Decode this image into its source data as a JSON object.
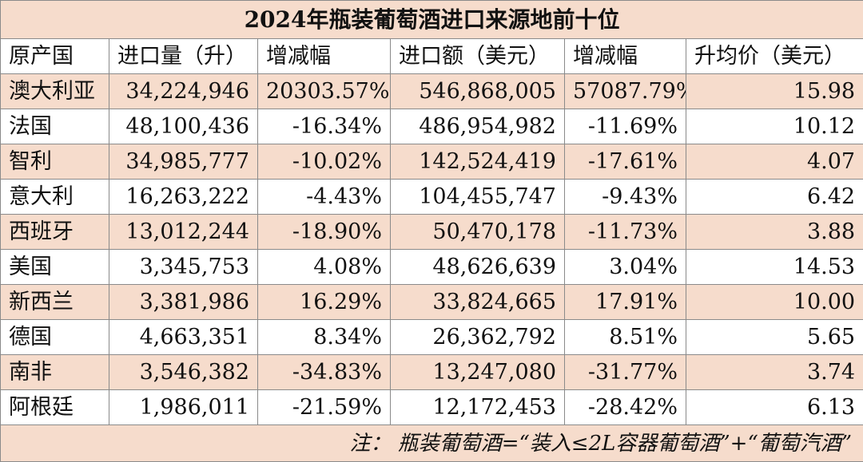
{
  "table": {
    "title": "2024年瓶装葡萄酒进口来源地前十位",
    "headers": [
      "原产国",
      "进口量（升）",
      "增减幅",
      "进口额（美元）",
      "增减幅",
      "升均价（美元）"
    ],
    "rows": [
      [
        "澳大利亚",
        "34,224,946",
        "20303.57%",
        "546,868,005",
        "57087.79%",
        "15.98"
      ],
      [
        "法国",
        "48,100,436",
        "-16.34%",
        "486,954,982",
        "-11.69%",
        "10.12"
      ],
      [
        "智利",
        "34,985,777",
        "-10.02%",
        "142,524,419",
        "-17.61%",
        "4.07"
      ],
      [
        "意大利",
        "16,263,222",
        "-4.43%",
        "104,455,747",
        "-9.43%",
        "6.42"
      ],
      [
        "西班牙",
        "13,012,244",
        "-18.90%",
        "50,470,178",
        "-11.73%",
        "3.88"
      ],
      [
        "美国",
        "3,345,753",
        "4.08%",
        "48,626,639",
        "3.04%",
        "14.53"
      ],
      [
        "新西兰",
        "3,381,986",
        "16.29%",
        "33,824,665",
        "17.91%",
        "10.00"
      ],
      [
        "德国",
        "4,663,351",
        "8.34%",
        "26,362,792",
        "8.51%",
        "5.65"
      ],
      [
        "南非",
        "3,546,382",
        "-34.83%",
        "13,247,080",
        "-31.77%",
        "3.74"
      ],
      [
        "阿根廷",
        "1,986,011",
        "-21.59%",
        "12,172,453",
        "-28.42%",
        "6.13"
      ]
    ],
    "note": "注：  瓶装葡萄酒=“装入≤2L容器葡萄酒”+“葡萄汽酒”"
  },
  "colors": {
    "band": "#f6dccc",
    "border": "#8a8a8a",
    "text": "#111111"
  }
}
